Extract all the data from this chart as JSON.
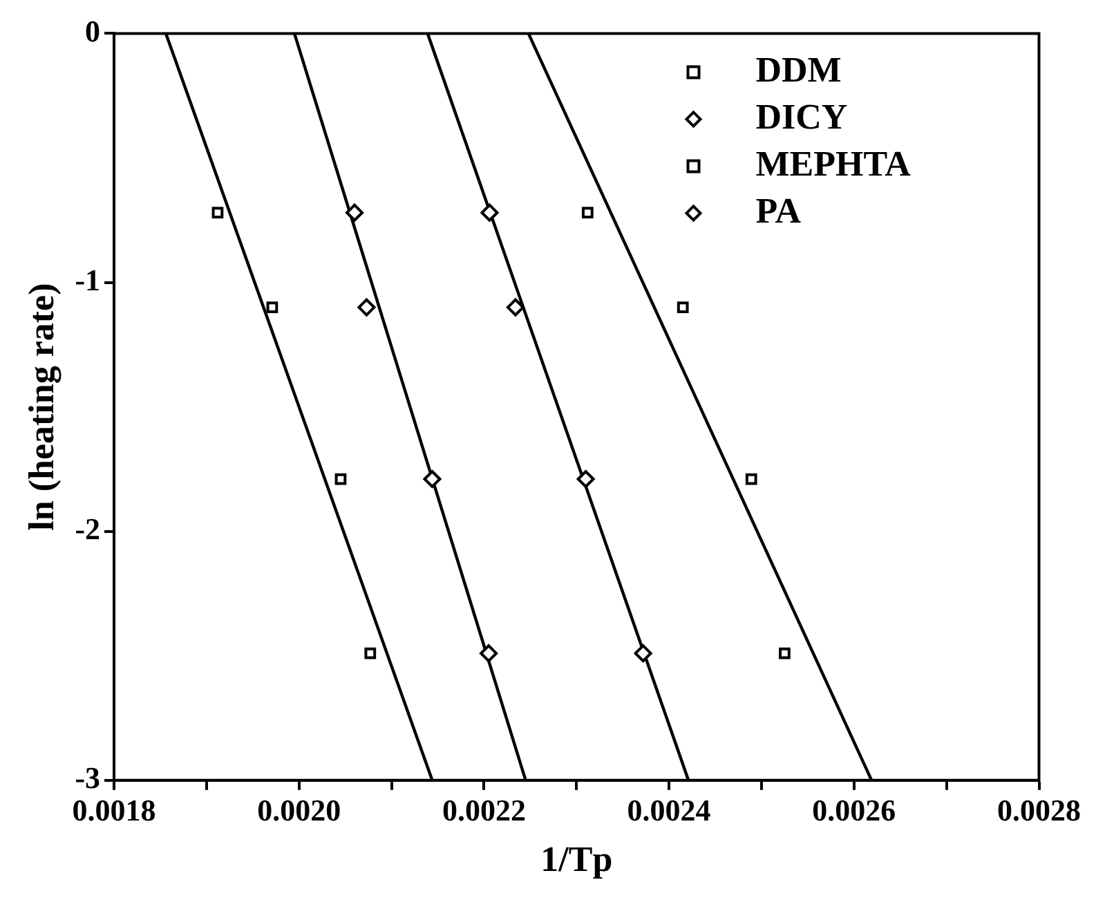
{
  "chart_data": {
    "type": "scatter",
    "xlabel": "1/Tp",
    "ylabel": "ln (heating rate)",
    "xlim": [
      0.0018,
      0.0028
    ],
    "xticks": [
      {
        "value": 0.0018,
        "label": "0.0018"
      },
      {
        "value": 0.0019,
        "label": null
      },
      {
        "value": 0.002,
        "label": "0.0020"
      },
      {
        "value": 0.0021,
        "label": null
      },
      {
        "value": 0.0022,
        "label": "0.0022"
      },
      {
        "value": 0.0023,
        "label": null
      },
      {
        "value": 0.0024,
        "label": "0.0024"
      },
      {
        "value": 0.0025,
        "label": null
      },
      {
        "value": 0.0026,
        "label": "0.0026"
      },
      {
        "value": 0.0027,
        "label": null
      },
      {
        "value": 0.0028,
        "label": "0.0028"
      }
    ],
    "ylim": [
      -3,
      0
    ],
    "yticks": [
      -3,
      -2,
      -1,
      0
    ],
    "legend": "top right",
    "grid": false,
    "series": [
      {
        "name": "DDM",
        "type": "scatter",
        "marker": "square",
        "color": "#000000",
        "x": [
          0.002312,
          0.002415,
          0.002489,
          0.002525
        ],
        "values": [
          -0.72,
          -1.1,
          -1.79,
          -2.49
        ]
      },
      {
        "name": "DICY",
        "type": "scatter",
        "marker": "diamond",
        "color": "#000000",
        "x": [
          0.002206,
          0.002234,
          0.00231,
          0.002372
        ],
        "values": [
          -0.72,
          -1.1,
          -1.79,
          -2.49
        ]
      },
      {
        "name": "MEPHTA",
        "type": "scatter",
        "marker": "square",
        "color": "#000000",
        "x": [
          0.001912,
          0.001971,
          0.002045,
          0.002077
        ],
        "values": [
          -0.72,
          -1.1,
          -1.79,
          -2.49
        ]
      },
      {
        "name": "PA",
        "type": "scatter",
        "marker": "diamond",
        "color": "#000000",
        "x": [
          0.00206,
          0.002073,
          0.002144,
          0.002205
        ],
        "values": [
          -0.72,
          -1.1,
          -1.79,
          -2.49
        ]
      },
      {
        "type": "line",
        "color": "#000000",
        "x": [
          0.001856,
          0.002144
        ],
        "values": [
          0,
          -3
        ]
      },
      {
        "type": "line",
        "color": "#000000",
        "x": [
          0.001995,
          0.002245
        ],
        "values": [
          0,
          -3
        ]
      },
      {
        "type": "line",
        "color": "#000000",
        "x": [
          0.002139,
          0.002421
        ],
        "values": [
          0,
          -3
        ]
      },
      {
        "type": "line",
        "color": "#000000",
        "x": [
          0.002248,
          0.002619
        ],
        "values": [
          0,
          -3
        ]
      }
    ]
  }
}
